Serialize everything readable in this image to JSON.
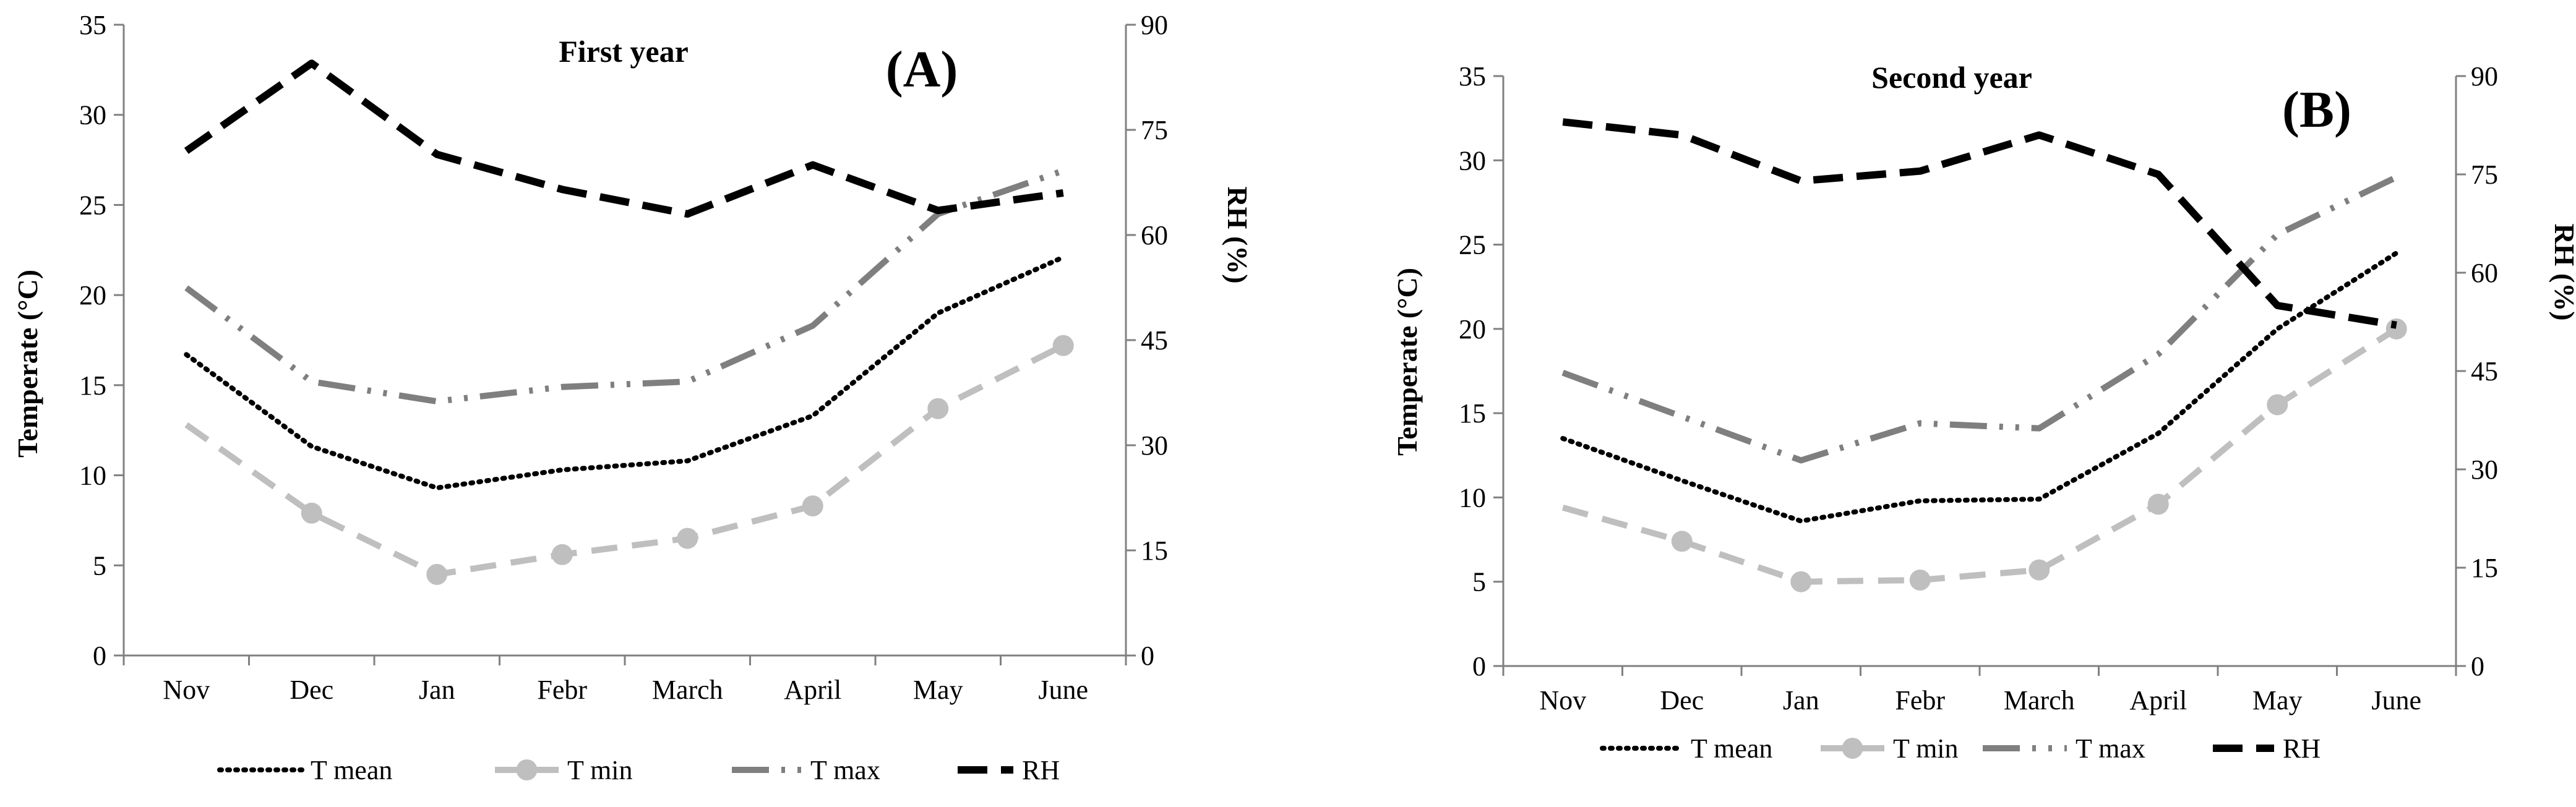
{
  "chart_data": [
    {
      "type": "line",
      "title": "First year",
      "panel_label": "(A)",
      "categories": [
        "Nov",
        "Dec",
        "Jan",
        "Febr",
        "March",
        "April",
        "May",
        "June"
      ],
      "ylabel": "Temperate (°C)",
      "ylabel2": "RH (%)",
      "ylim": [
        0,
        35
      ],
      "yticks": [
        "0",
        "5",
        "10",
        "15",
        "20",
        "25",
        "30",
        "35"
      ],
      "ylim2": [
        0,
        90
      ],
      "yticks2": [
        "0",
        "15",
        "30",
        "45",
        "60",
        "75",
        "90"
      ],
      "series": [
        {
          "name": "T mean",
          "axis": "left",
          "values": [
            16.7,
            11.6,
            9.3,
            10.3,
            10.8,
            13.3,
            19.0,
            22.1
          ]
        },
        {
          "name": "T min",
          "axis": "left",
          "values": [
            12.8,
            7.9,
            4.5,
            5.6,
            6.5,
            8.3,
            13.7,
            17.2
          ]
        },
        {
          "name": "T max",
          "axis": "left",
          "values": [
            20.4,
            15.2,
            14.1,
            14.9,
            15.2,
            18.3,
            24.5,
            26.9
          ]
        },
        {
          "name": "RH",
          "axis": "right",
          "values": [
            72.0,
            84.5,
            71.5,
            66.5,
            63.0,
            70.0,
            63.5,
            66.0
          ]
        }
      ]
    },
    {
      "type": "line",
      "title": "Second year",
      "panel_label": "(B)",
      "categories": [
        "Nov",
        "Dec",
        "Jan",
        "Febr",
        "March",
        "April",
        "May",
        "June"
      ],
      "ylabel": "Temperate (°C)",
      "ylabel2": "RH (%)",
      "ylim": [
        0,
        35
      ],
      "yticks": [
        "0",
        "5",
        "10",
        "15",
        "20",
        "25",
        "30",
        "35"
      ],
      "ylim2": [
        0,
        90
      ],
      "yticks2": [
        "0",
        "15",
        "30",
        "45",
        "60",
        "75",
        "90"
      ],
      "series": [
        {
          "name": "T mean",
          "axis": "left",
          "values": [
            13.5,
            11.0,
            8.6,
            9.8,
            9.9,
            13.8,
            20.0,
            24.5
          ]
        },
        {
          "name": "T min",
          "axis": "left",
          "values": [
            9.4,
            7.4,
            5.0,
            5.1,
            5.7,
            9.6,
            15.5,
            20.0
          ]
        },
        {
          "name": "T max",
          "axis": "left",
          "values": [
            17.4,
            14.8,
            12.2,
            14.4,
            14.1,
            18.5,
            25.6,
            29.0
          ]
        },
        {
          "name": "RH",
          "axis": "right",
          "values": [
            83.0,
            81.0,
            74.0,
            75.5,
            81.0,
            75.0,
            55.0,
            52.0
          ]
        }
      ]
    }
  ],
  "colors": {
    "T mean": "#000000",
    "T min": "#bfbfbf",
    "T max": "#7f7f7f",
    "RH": "#000000",
    "axis": "#808080"
  }
}
